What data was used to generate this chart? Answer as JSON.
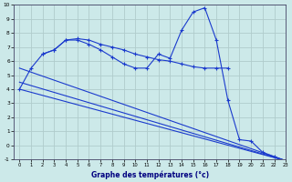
{
  "xlabel": "Graphe des températures (°c)",
  "xlim": [
    -0.5,
    23
  ],
  "ylim": [
    -1,
    10
  ],
  "xticks": [
    0,
    1,
    2,
    3,
    4,
    5,
    6,
    7,
    8,
    9,
    10,
    11,
    12,
    13,
    14,
    15,
    16,
    17,
    18,
    19,
    20,
    21,
    22,
    23
  ],
  "yticks": [
    -1,
    0,
    1,
    2,
    3,
    4,
    5,
    6,
    7,
    8,
    9,
    10
  ],
  "bg_color": "#cce9e9",
  "grid_color": "#b0cccc",
  "line_color": "#1a3acd",
  "line1_x": [
    0,
    1,
    2,
    3,
    4,
    5,
    6,
    7,
    8,
    9,
    10,
    11,
    12,
    13,
    14,
    15,
    16,
    17,
    18,
    19,
    20,
    21,
    22,
    23
  ],
  "line1_y": [
    4.0,
    5.5,
    6.5,
    6.8,
    7.5,
    7.5,
    7.2,
    6.8,
    6.3,
    5.8,
    5.5,
    5.5,
    6.5,
    6.2,
    8.2,
    9.5,
    9.8,
    7.5,
    3.2,
    0.4,
    0.3,
    -0.5,
    -0.8,
    -1.1
  ],
  "line2_x": [
    2,
    3,
    4,
    5,
    6,
    7,
    8,
    9,
    10,
    11,
    12,
    13,
    14,
    15,
    16,
    17,
    18
  ],
  "line2_y": [
    6.5,
    6.8,
    7.5,
    7.6,
    7.5,
    7.2,
    7.0,
    6.8,
    6.5,
    6.3,
    6.1,
    6.0,
    5.8,
    5.6,
    5.5,
    5.5,
    5.5
  ],
  "line3_x": [
    0,
    23
  ],
  "line3_y": [
    5.5,
    -1.1
  ],
  "line4_x": [
    0,
    23
  ],
  "line4_y": [
    4.5,
    -1.1
  ],
  "line5_x": [
    0,
    23
  ],
  "line5_y": [
    4.0,
    -1.1
  ]
}
